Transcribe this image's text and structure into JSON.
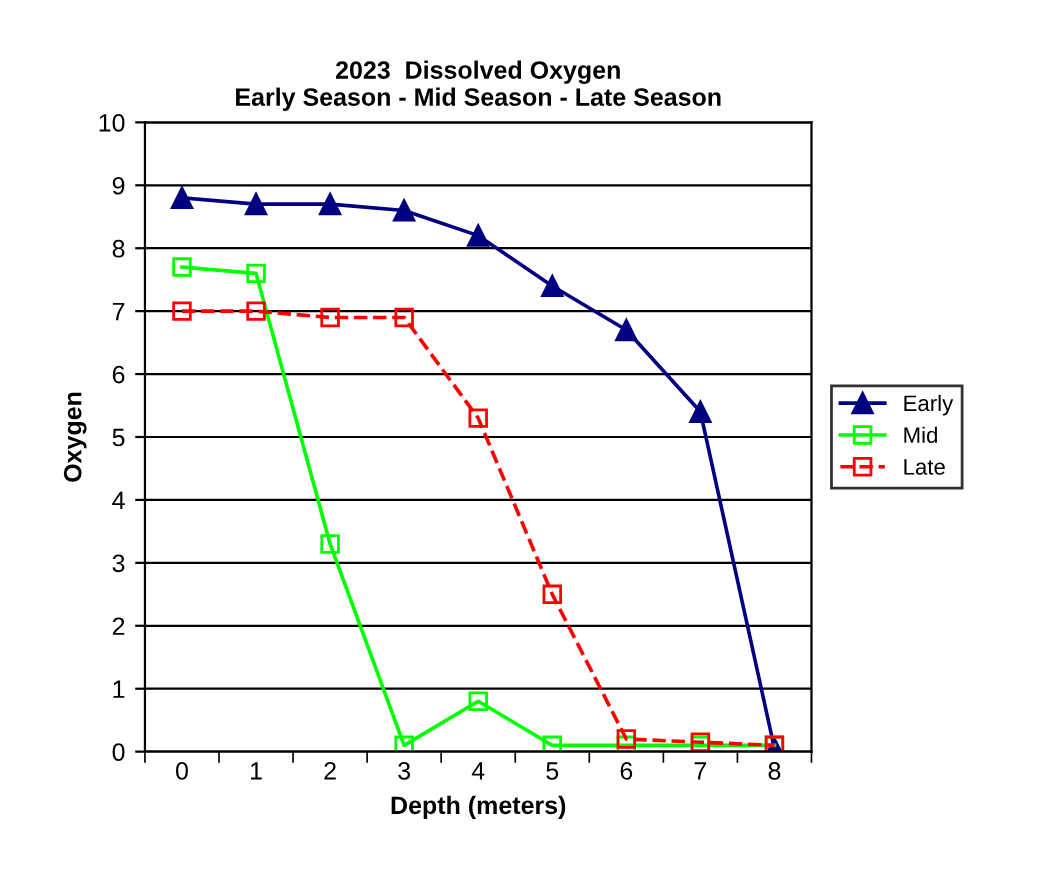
{
  "chart_data": {
    "type": "line",
    "title": "2023  Dissolved Oxygen\nEarly Season - Mid Season - Late Season",
    "xlabel": "Depth (meters)",
    "ylabel": "Oxygen",
    "categories": [
      "0",
      "1",
      "2",
      "3",
      "4",
      "5",
      "6",
      "7",
      "8"
    ],
    "series": [
      {
        "name": "Early",
        "color": "#000080",
        "marker": "triangle",
        "line_style": "solid",
        "values": [
          8.8,
          8.7,
          8.7,
          8.6,
          8.2,
          7.4,
          6.7,
          5.4,
          0.05
        ]
      },
      {
        "name": "Mid",
        "color": "#00ff00",
        "marker": "square",
        "line_style": "solid",
        "values": [
          7.7,
          7.6,
          3.3,
          0.1,
          0.8,
          0.1,
          0.1,
          0.1,
          0.1
        ]
      },
      {
        "name": "Late",
        "color": "#ff0000",
        "marker": "square",
        "line_style": "dashed",
        "values": [
          7.0,
          7.0,
          6.9,
          6.9,
          5.3,
          2.5,
          0.2,
          0.15,
          0.1
        ]
      }
    ],
    "ylim": [
      0,
      10
    ],
    "yticks": [
      0,
      1,
      2,
      3,
      4,
      5,
      6,
      7,
      8,
      9,
      10
    ],
    "grid": "y",
    "legend": "right"
  }
}
